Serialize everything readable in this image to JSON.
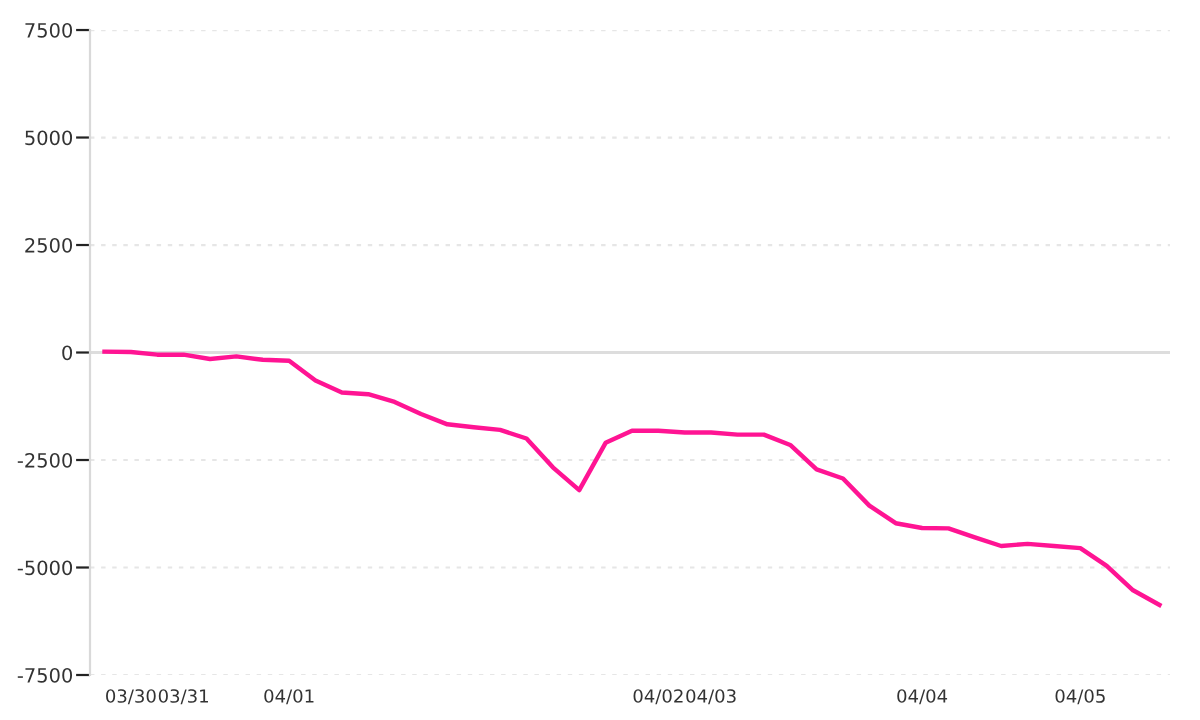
{
  "chart_data": {
    "type": "line",
    "categories": [
      null,
      "03/30",
      null,
      "03/31",
      null,
      null,
      null,
      "04/01",
      null,
      null,
      null,
      null,
      null,
      null,
      null,
      null,
      null,
      null,
      null,
      null,
      null,
      "04/02",
      null,
      "04/03",
      null,
      null,
      null,
      null,
      null,
      null,
      null,
      "04/04",
      null,
      null,
      null,
      null,
      null,
      "04/05",
      null,
      null,
      null
    ],
    "series": [
      {
        "color": "#ff1493",
        "values": [
          20,
          10,
          -50,
          -50,
          -150,
          -90,
          -170,
          -190,
          -650,
          -930,
          -970,
          -1150,
          -1430,
          -1670,
          -1740,
          -1800,
          -2000,
          -2670,
          -3200,
          -2100,
          -1820,
          -1820,
          -1860,
          -1860,
          -1910,
          -1910,
          -2150,
          -2720,
          -2930,
          -3560,
          -3970,
          -4080,
          -4090,
          -4300,
          -4500,
          -4450,
          -4500,
          -4550,
          -4960,
          -5530,
          -5870
        ]
      }
    ],
    "ylim": [
      -7500,
      7500
    ],
    "yticks": [
      -7500,
      -5000,
      -2500,
      0,
      2500,
      5000,
      7500
    ],
    "grid": "y",
    "ref_lines": [
      {
        "axis": "y",
        "value": 0,
        "color": "#dddddd"
      }
    ],
    "marker": "none",
    "line_style": "solid"
  }
}
